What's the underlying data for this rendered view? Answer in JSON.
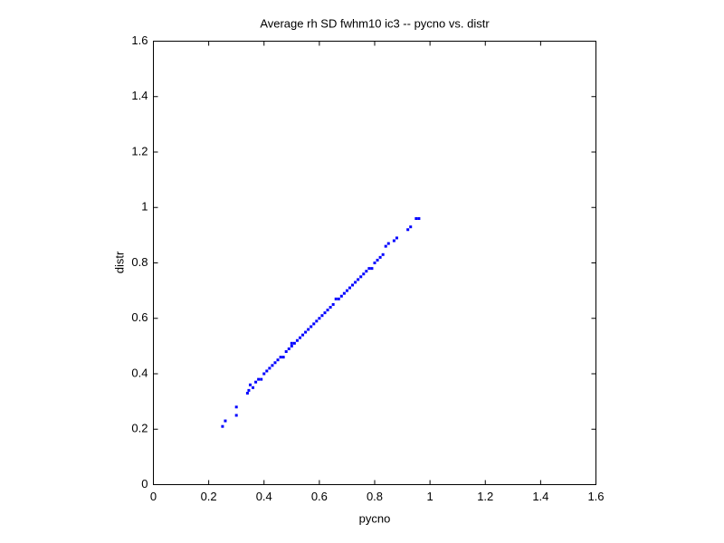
{
  "chart_data": {
    "type": "scatter",
    "title": "Average rh SD fwhm10 ic3 -- pycno vs. distr",
    "x_label": "pycno",
    "y_label": "distr",
    "series": [
      {
        "color": "#0000ff",
        "x": [
          0.25,
          0.26,
          0.3,
          0.3,
          0.34,
          0.345,
          0.35,
          0.36,
          0.37,
          0.38,
          0.39,
          0.4,
          0.41,
          0.42,
          0.43,
          0.44,
          0.45,
          0.46,
          0.47,
          0.48,
          0.49,
          0.5,
          0.5,
          0.51,
          0.52,
          0.53,
          0.54,
          0.55,
          0.56,
          0.57,
          0.58,
          0.59,
          0.6,
          0.61,
          0.62,
          0.63,
          0.64,
          0.65,
          0.66,
          0.67,
          0.68,
          0.69,
          0.7,
          0.71,
          0.72,
          0.73,
          0.74,
          0.75,
          0.76,
          0.77,
          0.78,
          0.79,
          0.8,
          0.81,
          0.82,
          0.83,
          0.84,
          0.85,
          0.87,
          0.88,
          0.92,
          0.93,
          0.95,
          0.96
        ],
        "y": [
          0.21,
          0.23,
          0.25,
          0.28,
          0.33,
          0.34,
          0.36,
          0.35,
          0.37,
          0.38,
          0.38,
          0.4,
          0.41,
          0.42,
          0.43,
          0.44,
          0.45,
          0.46,
          0.46,
          0.48,
          0.49,
          0.5,
          0.51,
          0.51,
          0.52,
          0.53,
          0.54,
          0.55,
          0.56,
          0.57,
          0.58,
          0.59,
          0.6,
          0.61,
          0.62,
          0.63,
          0.64,
          0.65,
          0.67,
          0.67,
          0.68,
          0.69,
          0.7,
          0.71,
          0.72,
          0.73,
          0.74,
          0.75,
          0.76,
          0.77,
          0.78,
          0.78,
          0.8,
          0.81,
          0.82,
          0.83,
          0.86,
          0.87,
          0.88,
          0.89,
          0.92,
          0.93,
          0.96,
          0.96
        ]
      }
    ],
    "xlim": [
      0,
      1.6
    ],
    "xticks": [
      0,
      0.2,
      0.4,
      0.6,
      0.8,
      1,
      1.2,
      1.4,
      1.6
    ],
    "ylim": [
      0,
      1.6
    ],
    "yticks": [
      0,
      0.2,
      0.4,
      0.6,
      0.8,
      1,
      1.2,
      1.4,
      1.6
    ],
    "grid": false
  }
}
